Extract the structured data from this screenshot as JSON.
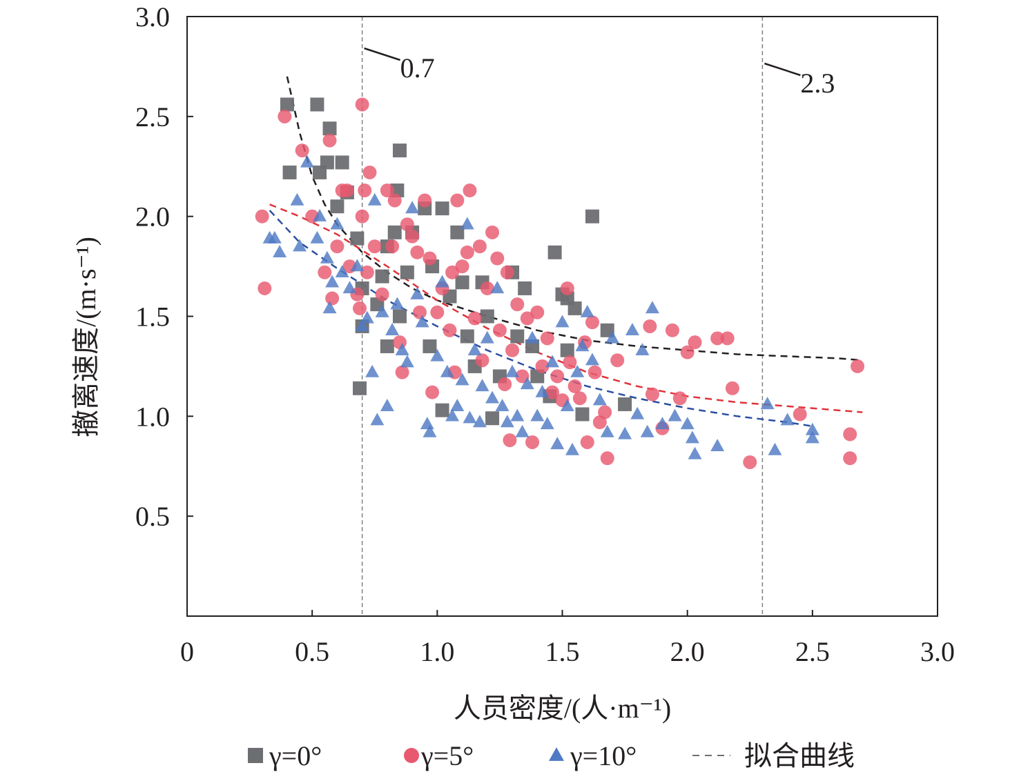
{
  "chart_data": {
    "type": "scatter",
    "xlabel": "人员密度/(人·m⁻¹)",
    "ylabel": "撤离速度/(m·s⁻¹)",
    "xlim": [
      0,
      3.0
    ],
    "ylim": [
      0.0,
      3.0
    ],
    "x_ticks": [
      {
        "value": 0,
        "label": "0"
      },
      {
        "value": 0.5,
        "label": "0.5"
      },
      {
        "value": 1.0,
        "label": "1.0"
      },
      {
        "value": 1.5,
        "label": "1.5"
      },
      {
        "value": 2.0,
        "label": "2.0"
      },
      {
        "value": 2.5,
        "label": "2.5"
      },
      {
        "value": 3.0,
        "label": "3.0"
      }
    ],
    "y_ticks": [
      {
        "value": 0.5,
        "label": "0.5"
      },
      {
        "value": 1.0,
        "label": "1.0"
      },
      {
        "value": 1.5,
        "label": "1.5"
      },
      {
        "value": 2.0,
        "label": "2.0"
      },
      {
        "value": 2.5,
        "label": "2.5"
      },
      {
        "value": 3.0,
        "label": "3.0"
      }
    ],
    "grid": false,
    "legend_position": "bottom",
    "vlines": [
      {
        "x": 0.7,
        "label": "0.7"
      },
      {
        "x": 2.3,
        "label": "2.3"
      }
    ],
    "series": [
      {
        "name": "γ=0°",
        "marker": "square",
        "color": "#6d6e71",
        "points": [
          [
            0.4,
            2.56
          ],
          [
            0.41,
            2.22
          ],
          [
            0.52,
            2.56
          ],
          [
            0.53,
            2.22
          ],
          [
            0.56,
            2.27
          ],
          [
            0.57,
            2.44
          ],
          [
            0.6,
            2.05
          ],
          [
            0.62,
            2.27
          ],
          [
            0.64,
            2.12
          ],
          [
            0.68,
            1.89
          ],
          [
            0.7,
            1.64
          ],
          [
            0.7,
            1.45
          ],
          [
            0.69,
            1.14
          ],
          [
            0.85,
            2.33
          ],
          [
            0.84,
            2.13
          ],
          [
            0.83,
            1.92
          ],
          [
            0.8,
            1.85
          ],
          [
            0.78,
            1.7
          ],
          [
            0.76,
            1.56
          ],
          [
            0.8,
            1.35
          ],
          [
            0.85,
            1.5
          ],
          [
            0.88,
            1.72
          ],
          [
            0.9,
            1.92
          ],
          [
            0.95,
            2.04
          ],
          [
            1.02,
            2.04
          ],
          [
            1.08,
            1.92
          ],
          [
            0.98,
            1.75
          ],
          [
            1.05,
            1.6
          ],
          [
            0.97,
            1.35
          ],
          [
            1.02,
            1.03
          ],
          [
            1.1,
            1.67
          ],
          [
            1.12,
            1.4
          ],
          [
            1.15,
            1.25
          ],
          [
            1.18,
            1.67
          ],
          [
            1.2,
            1.5
          ],
          [
            1.22,
            0.99
          ],
          [
            1.25,
            1.2
          ],
          [
            1.3,
            1.72
          ],
          [
            1.32,
            1.4
          ],
          [
            1.35,
            1.64
          ],
          [
            1.38,
            1.35
          ],
          [
            1.4,
            1.2
          ],
          [
            1.45,
            1.1
          ],
          [
            1.47,
            1.82
          ],
          [
            1.5,
            1.61
          ],
          [
            1.52,
            1.59
          ],
          [
            1.52,
            1.33
          ],
          [
            1.55,
            1.54
          ],
          [
            1.58,
            1.01
          ],
          [
            1.62,
            2.0
          ],
          [
            1.68,
            1.43
          ],
          [
            1.75,
            1.06
          ]
        ]
      },
      {
        "name": "γ=5°",
        "marker": "circle",
        "color": "#e8596f",
        "points": [
          [
            0.3,
            2.0
          ],
          [
            0.31,
            1.64
          ],
          [
            0.39,
            2.5
          ],
          [
            0.46,
            2.33
          ],
          [
            0.5,
            2.0
          ],
          [
            0.57,
            2.38
          ],
          [
            0.55,
            1.72
          ],
          [
            0.58,
            1.59
          ],
          [
            0.6,
            1.85
          ],
          [
            0.62,
            2.13
          ],
          [
            0.64,
            2.13
          ],
          [
            0.65,
            1.75
          ],
          [
            0.68,
            1.61
          ],
          [
            0.69,
            1.54
          ],
          [
            0.7,
            2.56
          ],
          [
            0.7,
            2.0
          ],
          [
            0.71,
            2.13
          ],
          [
            0.72,
            1.72
          ],
          [
            0.73,
            2.22
          ],
          [
            0.75,
            1.85
          ],
          [
            0.78,
            1.61
          ],
          [
            0.8,
            2.13
          ],
          [
            0.82,
            1.85
          ],
          [
            0.83,
            2.08
          ],
          [
            0.85,
            1.37
          ],
          [
            0.86,
            1.22
          ],
          [
            0.88,
            1.96
          ],
          [
            0.9,
            1.9
          ],
          [
            0.92,
            1.82
          ],
          [
            0.93,
            1.52
          ],
          [
            0.95,
            2.08
          ],
          [
            0.97,
            1.79
          ],
          [
            0.98,
            1.12
          ],
          [
            1.0,
            1.52
          ],
          [
            1.02,
            1.64
          ],
          [
            1.05,
            1.43
          ],
          [
            1.06,
            1.72
          ],
          [
            1.07,
            1.22
          ],
          [
            1.08,
            2.08
          ],
          [
            1.1,
            1.75
          ],
          [
            1.12,
            1.82
          ],
          [
            1.13,
            2.13
          ],
          [
            1.15,
            1.49
          ],
          [
            1.17,
            1.85
          ],
          [
            1.18,
            1.28
          ],
          [
            1.2,
            1.64
          ],
          [
            1.22,
            1.92
          ],
          [
            1.24,
            1.79
          ],
          [
            1.25,
            1.43
          ],
          [
            1.27,
            1.16
          ],
          [
            1.28,
            1.72
          ],
          [
            1.29,
            0.88
          ],
          [
            1.3,
            1.33
          ],
          [
            1.32,
            1.56
          ],
          [
            1.34,
            1.2
          ],
          [
            1.36,
            1.49
          ],
          [
            1.38,
            0.87
          ],
          [
            1.4,
            1.52
          ],
          [
            1.42,
            1.25
          ],
          [
            1.44,
            1.39
          ],
          [
            1.46,
            1.12
          ],
          [
            1.48,
            1.2
          ],
          [
            1.5,
            1.08
          ],
          [
            1.52,
            1.64
          ],
          [
            1.53,
            1.27
          ],
          [
            1.55,
            1.15
          ],
          [
            1.57,
            1.09
          ],
          [
            1.59,
            1.37
          ],
          [
            1.6,
            0.87
          ],
          [
            1.62,
            1.47
          ],
          [
            1.63,
            1.22
          ],
          [
            1.65,
            0.97
          ],
          [
            1.67,
            1.02
          ],
          [
            1.68,
            0.79
          ],
          [
            1.72,
            1.28
          ],
          [
            1.85,
            1.45
          ],
          [
            1.86,
            1.11
          ],
          [
            1.9,
            0.94
          ],
          [
            1.94,
            1.43
          ],
          [
            1.97,
            1.09
          ],
          [
            2.0,
            1.32
          ],
          [
            2.03,
            1.37
          ],
          [
            2.12,
            1.39
          ],
          [
            2.16,
            1.39
          ],
          [
            2.18,
            1.14
          ],
          [
            2.25,
            0.77
          ],
          [
            2.45,
            1.01
          ],
          [
            2.65,
            0.91
          ],
          [
            2.65,
            0.79
          ],
          [
            2.68,
            1.25
          ]
        ]
      },
      {
        "name": "γ=10°",
        "marker": "triangle",
        "color": "#4f7ac4",
        "points": [
          [
            0.33,
            1.89
          ],
          [
            0.35,
            1.89
          ],
          [
            0.37,
            1.82
          ],
          [
            0.44,
            2.08
          ],
          [
            0.45,
            1.85
          ],
          [
            0.48,
            2.27
          ],
          [
            0.52,
            1.89
          ],
          [
            0.53,
            2.0
          ],
          [
            0.56,
            1.79
          ],
          [
            0.57,
            1.54
          ],
          [
            0.58,
            1.67
          ],
          [
            0.6,
            1.96
          ],
          [
            0.62,
            1.72
          ],
          [
            0.65,
            1.64
          ],
          [
            0.68,
            1.75
          ],
          [
            0.7,
            1.45
          ],
          [
            0.72,
            1.49
          ],
          [
            0.74,
            1.22
          ],
          [
            0.75,
            2.08
          ],
          [
            0.76,
            0.98
          ],
          [
            0.78,
            1.52
          ],
          [
            0.8,
            1.05
          ],
          [
            0.82,
            1.43
          ],
          [
            0.84,
            1.56
          ],
          [
            0.86,
            1.33
          ],
          [
            0.88,
            1.27
          ],
          [
            0.9,
            2.04
          ],
          [
            0.92,
            1.61
          ],
          [
            0.94,
            1.47
          ],
          [
            0.96,
            0.96
          ],
          [
            0.97,
            0.92
          ],
          [
            1.0,
            1.3
          ],
          [
            1.02,
            1.67
          ],
          [
            1.04,
            1.22
          ],
          [
            1.06,
            1.0
          ],
          [
            1.08,
            1.05
          ],
          [
            1.1,
            1.18
          ],
          [
            1.12,
            1.96
          ],
          [
            1.13,
            0.99
          ],
          [
            1.15,
            1.33
          ],
          [
            1.17,
            0.97
          ],
          [
            1.18,
            1.15
          ],
          [
            1.2,
            1.39
          ],
          [
            1.22,
            1.09
          ],
          [
            1.24,
            1.64
          ],
          [
            1.26,
            1.05
          ],
          [
            1.28,
            0.97
          ],
          [
            1.3,
            1.22
          ],
          [
            1.32,
            1.0
          ],
          [
            1.34,
            0.92
          ],
          [
            1.36,
            1.16
          ],
          [
            1.38,
            1.39
          ],
          [
            1.4,
            1.0
          ],
          [
            1.42,
            1.12
          ],
          [
            1.44,
            0.96
          ],
          [
            1.46,
            1.27
          ],
          [
            1.48,
            0.86
          ],
          [
            1.5,
            1.47
          ],
          [
            1.52,
            1.05
          ],
          [
            1.54,
            0.83
          ],
          [
            1.56,
            1.22
          ],
          [
            1.58,
            1.35
          ],
          [
            1.6,
            1.52
          ],
          [
            1.62,
            1.28
          ],
          [
            1.65,
            1.08
          ],
          [
            1.68,
            0.92
          ],
          [
            1.7,
            1.39
          ],
          [
            1.75,
            0.91
          ],
          [
            1.78,
            1.43
          ],
          [
            1.8,
            1.01
          ],
          [
            1.82,
            1.33
          ],
          [
            1.84,
            0.92
          ],
          [
            1.86,
            1.54
          ],
          [
            1.9,
            0.96
          ],
          [
            1.95,
            1.0
          ],
          [
            2.0,
            0.96
          ],
          [
            2.02,
            0.89
          ],
          [
            2.03,
            0.81
          ],
          [
            2.12,
            0.85
          ],
          [
            2.32,
            1.06
          ],
          [
            2.35,
            0.83
          ],
          [
            2.4,
            0.98
          ],
          [
            2.5,
            0.93
          ],
          [
            2.5,
            0.89
          ]
        ]
      }
    ],
    "fit_curves": [
      {
        "series": "γ=0°",
        "color": "#231f20",
        "points": [
          [
            0.4,
            2.7
          ],
          [
            0.45,
            2.42
          ],
          [
            0.5,
            2.2
          ],
          [
            0.55,
            2.06
          ],
          [
            0.6,
            1.96
          ],
          [
            0.7,
            1.82
          ],
          [
            0.8,
            1.72
          ],
          [
            0.9,
            1.64
          ],
          [
            1.0,
            1.58
          ],
          [
            1.2,
            1.5
          ],
          [
            1.4,
            1.43
          ],
          [
            1.6,
            1.38
          ],
          [
            1.8,
            1.35
          ],
          [
            2.0,
            1.33
          ],
          [
            2.2,
            1.31
          ],
          [
            2.4,
            1.3
          ],
          [
            2.6,
            1.29
          ],
          [
            2.7,
            1.28
          ]
        ]
      },
      {
        "series": "γ=5°",
        "color": "#e0323a",
        "points": [
          [
            0.33,
            2.06
          ],
          [
            0.45,
            2.0
          ],
          [
            0.6,
            1.91
          ],
          [
            0.8,
            1.75
          ],
          [
            1.0,
            1.58
          ],
          [
            1.2,
            1.44
          ],
          [
            1.4,
            1.32
          ],
          [
            1.6,
            1.22
          ],
          [
            1.8,
            1.15
          ],
          [
            2.0,
            1.1
          ],
          [
            2.2,
            1.07
          ],
          [
            2.4,
            1.05
          ],
          [
            2.6,
            1.03
          ],
          [
            2.7,
            1.02
          ]
        ]
      },
      {
        "series": "γ=10°",
        "color": "#2b4ea1",
        "points": [
          [
            0.33,
            2.03
          ],
          [
            0.45,
            1.87
          ],
          [
            0.6,
            1.74
          ],
          [
            0.8,
            1.58
          ],
          [
            1.0,
            1.45
          ],
          [
            1.2,
            1.33
          ],
          [
            1.4,
            1.23
          ],
          [
            1.6,
            1.15
          ],
          [
            1.8,
            1.09
          ],
          [
            2.0,
            1.04
          ],
          [
            2.2,
            1.0
          ],
          [
            2.4,
            0.97
          ],
          [
            2.5,
            0.95
          ]
        ]
      }
    ],
    "legend": {
      "items": [
        {
          "label": "γ=0°",
          "marker": "square",
          "color": "#6d6e71"
        },
        {
          "label": "γ=5°",
          "marker": "circle",
          "color": "#e8596f"
        },
        {
          "label": "γ=10°",
          "marker": "triangle",
          "color": "#4f7ac4"
        },
        {
          "label": "拟合曲线",
          "marker": "dashed-line",
          "color": "#6d6e71"
        }
      ]
    }
  }
}
